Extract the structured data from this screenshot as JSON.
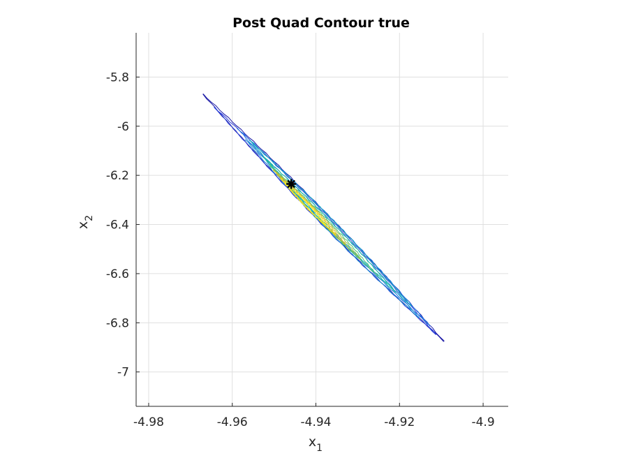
{
  "chart_data": {
    "type": "contour",
    "title": "Post Quad Contour true",
    "xlabel": {
      "base": "x",
      "sub": "1"
    },
    "ylabel": {
      "base": "x",
      "sub": "2"
    },
    "xlim": [
      -4.983,
      -4.894
    ],
    "ylim": [
      -7.14,
      -5.62
    ],
    "xticks": [
      -4.98,
      -4.96,
      -4.94,
      -4.92,
      -4.9
    ],
    "yticks": [
      -5.8,
      -6,
      -6.2,
      -6.4,
      -6.6,
      -6.8,
      -7
    ],
    "xtick_labels": [
      "-4.98",
      "-4.96",
      "-4.94",
      "-4.92",
      "-4.9"
    ],
    "ytick_labels": [
      "-5.8",
      "-6",
      "-6.2",
      "-6.4",
      "-6.6",
      "-6.8",
      "-7"
    ],
    "grid": true,
    "colormap": "parula",
    "contour_axis": {
      "start": [
        -4.967,
        -5.87
      ],
      "end": [
        -4.9094,
        -6.875
      ]
    },
    "contour_levels": [
      {
        "color": "#1c1aa6",
        "from": 0.0,
        "to": 1.0,
        "offset": 0.0
      },
      {
        "color": "#2a3fd8",
        "from": 0.05,
        "to": 0.97,
        "offset": 1.2
      },
      {
        "color": "#1f6fe0",
        "from": 0.14,
        "to": 0.94,
        "offset": -1.2
      },
      {
        "color": "#1a8fd3",
        "from": 0.18,
        "to": 0.9,
        "offset": 2.0
      },
      {
        "color": "#12a8c0",
        "from": 0.19,
        "to": 0.86,
        "offset": -1.8
      },
      {
        "color": "#1fbea0",
        "from": 0.25,
        "to": 0.8,
        "offset": 0.6
      },
      {
        "color": "#4cc07a",
        "from": 0.28,
        "to": 0.73,
        "offset": 2.4
      },
      {
        "color": "#9cc341",
        "from": 0.3,
        "to": 0.66,
        "offset": 3.0
      },
      {
        "color": "#d6ba2f",
        "from": 0.3,
        "to": 0.6,
        "offset": 3.6
      },
      {
        "color": "#f7d81b",
        "from": 0.33,
        "to": 0.56,
        "offset": 4.2
      },
      {
        "color": "#f9f425",
        "from": 0.35,
        "to": 0.52,
        "offset": 4.8
      }
    ],
    "marker": {
      "x": -4.9459,
      "y": -6.235,
      "color": "#000000",
      "shape": "asterisk"
    }
  }
}
